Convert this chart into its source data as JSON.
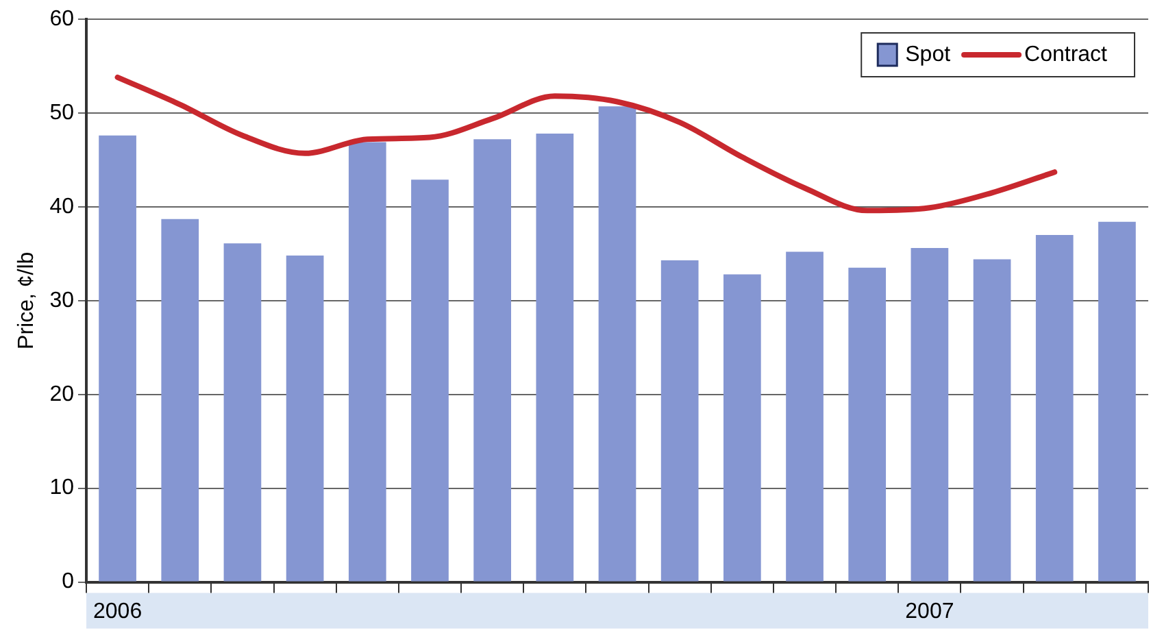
{
  "chart_data": {
    "type": "bar",
    "ylabel": "Price, ¢/lb",
    "categories": [
      "2006",
      null,
      null,
      null,
      null,
      null,
      null,
      null,
      null,
      null,
      null,
      null,
      null,
      "2007",
      null,
      null,
      null
    ],
    "series": [
      {
        "name": "Spot",
        "color": "#8596d2",
        "values": [
          47.6,
          38.7,
          36.1,
          34.8,
          46.9,
          42.9,
          47.2,
          47.8,
          50.7,
          34.3,
          32.8,
          35.2,
          33.5,
          35.6,
          34.4,
          37.0,
          38.4
        ]
      },
      {
        "name": "Contract",
        "type": "line",
        "color": "#c8282e",
        "values": [
          53.8,
          50.9,
          47.6,
          45.7,
          47.2,
          47.4,
          49.4,
          51.8,
          51.2,
          49.0,
          45.3,
          42.0,
          39.6,
          39.9,
          41.5,
          43.7,
          null
        ]
      }
    ],
    "ylim": [
      0,
      60
    ],
    "yticks": [
      0,
      10,
      20,
      30,
      40,
      50,
      60
    ],
    "grid": "y",
    "legend": "top right",
    "marker": "none",
    "line_style": "solid"
  }
}
